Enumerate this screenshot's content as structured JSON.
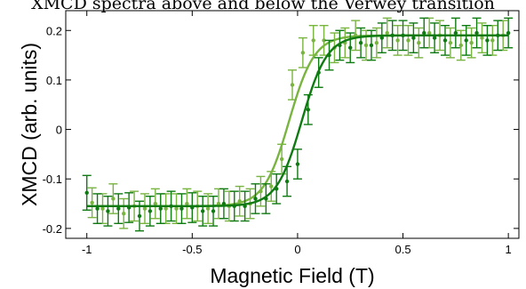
{
  "caption": "XMCD spectra above and below the Verwey transition",
  "chart_data": {
    "type": "scatter",
    "title": "",
    "xlabel": "Magnetic Field (T)",
    "ylabel": "XMCD (arb. units)",
    "xlim": [
      -1.1,
      1.05
    ],
    "ylim": [
      -0.22,
      0.24
    ],
    "xticks": [
      -1,
      -0.5,
      0,
      0.5,
      1
    ],
    "xtick_labels": [
      "-1",
      "-0.5",
      "0",
      "0.5",
      "1"
    ],
    "yticks": [
      -0.2,
      -0.1,
      0,
      0.1,
      0.2
    ],
    "ytick_labels": [
      "-0.2",
      "-0.1",
      "0",
      "0.1",
      "0.2"
    ],
    "grid": false,
    "legend": "none",
    "series": [
      {
        "color": "#0f7a12",
        "fit": {
          "low": -0.155,
          "high": 0.19,
          "center": 0.02,
          "width": 0.06
        },
        "points": [
          {
            "x": -1.0,
            "y": -0.128,
            "err": 0.035
          },
          {
            "x": -0.95,
            "y": -0.16,
            "err": 0.03
          },
          {
            "x": -0.9,
            "y": -0.165,
            "err": 0.03
          },
          {
            "x": -0.85,
            "y": -0.16,
            "err": 0.03
          },
          {
            "x": -0.8,
            "y": -0.158,
            "err": 0.03
          },
          {
            "x": -0.75,
            "y": -0.175,
            "err": 0.03
          },
          {
            "x": -0.7,
            "y": -0.165,
            "err": 0.03
          },
          {
            "x": -0.65,
            "y": -0.16,
            "err": 0.03
          },
          {
            "x": -0.6,
            "y": -0.155,
            "err": 0.03
          },
          {
            "x": -0.55,
            "y": -0.16,
            "err": 0.03
          },
          {
            "x": -0.5,
            "y": -0.158,
            "err": 0.03
          },
          {
            "x": -0.45,
            "y": -0.165,
            "err": 0.03
          },
          {
            "x": -0.4,
            "y": -0.165,
            "err": 0.03
          },
          {
            "x": -0.35,
            "y": -0.15,
            "err": 0.03
          },
          {
            "x": -0.3,
            "y": -0.155,
            "err": 0.03
          },
          {
            "x": -0.25,
            "y": -0.155,
            "err": 0.03
          },
          {
            "x": -0.2,
            "y": -0.14,
            "err": 0.03
          },
          {
            "x": -0.15,
            "y": -0.14,
            "err": 0.03
          },
          {
            "x": -0.1,
            "y": -0.12,
            "err": 0.03
          },
          {
            "x": -0.05,
            "y": -0.105,
            "err": 0.03
          },
          {
            "x": 0.0,
            "y": -0.07,
            "err": 0.03
          },
          {
            "x": 0.05,
            "y": 0.04,
            "err": 0.03
          },
          {
            "x": 0.1,
            "y": 0.115,
            "err": 0.03
          },
          {
            "x": 0.15,
            "y": 0.15,
            "err": 0.03
          },
          {
            "x": 0.2,
            "y": 0.17,
            "err": 0.03
          },
          {
            "x": 0.25,
            "y": 0.165,
            "err": 0.03
          },
          {
            "x": 0.3,
            "y": 0.175,
            "err": 0.03
          },
          {
            "x": 0.35,
            "y": 0.17,
            "err": 0.03
          },
          {
            "x": 0.4,
            "y": 0.185,
            "err": 0.03
          },
          {
            "x": 0.45,
            "y": 0.19,
            "err": 0.03
          },
          {
            "x": 0.5,
            "y": 0.19,
            "err": 0.03
          },
          {
            "x": 0.55,
            "y": 0.185,
            "err": 0.03
          },
          {
            "x": 0.6,
            "y": 0.195,
            "err": 0.03
          },
          {
            "x": 0.65,
            "y": 0.185,
            "err": 0.03
          },
          {
            "x": 0.7,
            "y": 0.18,
            "err": 0.03
          },
          {
            "x": 0.75,
            "y": 0.195,
            "err": 0.03
          },
          {
            "x": 0.8,
            "y": 0.18,
            "err": 0.03
          },
          {
            "x": 0.85,
            "y": 0.195,
            "err": 0.03
          },
          {
            "x": 0.9,
            "y": 0.18,
            "err": 0.03
          },
          {
            "x": 0.95,
            "y": 0.19,
            "err": 0.03
          },
          {
            "x": 1.0,
            "y": 0.195,
            "err": 0.03
          }
        ]
      },
      {
        "color": "#79b440",
        "fit": {
          "low": -0.155,
          "high": 0.19,
          "center": -0.04,
          "width": 0.06
        },
        "points": [
          {
            "x": -0.975,
            "y": -0.148,
            "err": 0.03
          },
          {
            "x": -0.925,
            "y": -0.16,
            "err": 0.03
          },
          {
            "x": -0.875,
            "y": -0.14,
            "err": 0.03
          },
          {
            "x": -0.825,
            "y": -0.17,
            "err": 0.03
          },
          {
            "x": -0.775,
            "y": -0.155,
            "err": 0.03
          },
          {
            "x": -0.725,
            "y": -0.16,
            "err": 0.03
          },
          {
            "x": -0.675,
            "y": -0.15,
            "err": 0.03
          },
          {
            "x": -0.625,
            "y": -0.16,
            "err": 0.03
          },
          {
            "x": -0.575,
            "y": -0.16,
            "err": 0.03
          },
          {
            "x": -0.525,
            "y": -0.15,
            "err": 0.03
          },
          {
            "x": -0.475,
            "y": -0.155,
            "err": 0.03
          },
          {
            "x": -0.425,
            "y": -0.16,
            "err": 0.03
          },
          {
            "x": -0.375,
            "y": -0.15,
            "err": 0.03
          },
          {
            "x": -0.325,
            "y": -0.155,
            "err": 0.03
          },
          {
            "x": -0.275,
            "y": -0.145,
            "err": 0.03
          },
          {
            "x": -0.225,
            "y": -0.15,
            "err": 0.03
          },
          {
            "x": -0.175,
            "y": -0.125,
            "err": 0.03
          },
          {
            "x": -0.125,
            "y": -0.115,
            "err": 0.03
          },
          {
            "x": -0.075,
            "y": -0.06,
            "err": 0.03
          },
          {
            "x": -0.025,
            "y": 0.09,
            "err": 0.03
          },
          {
            "x": 0.025,
            "y": 0.155,
            "err": 0.03
          },
          {
            "x": 0.075,
            "y": 0.18,
            "err": 0.03
          },
          {
            "x": 0.125,
            "y": 0.18,
            "err": 0.03
          },
          {
            "x": 0.175,
            "y": 0.165,
            "err": 0.03
          },
          {
            "x": 0.225,
            "y": 0.175,
            "err": 0.03
          },
          {
            "x": 0.275,
            "y": 0.19,
            "err": 0.03
          },
          {
            "x": 0.325,
            "y": 0.17,
            "err": 0.03
          },
          {
            "x": 0.375,
            "y": 0.175,
            "err": 0.03
          },
          {
            "x": 0.425,
            "y": 0.195,
            "err": 0.03
          },
          {
            "x": 0.475,
            "y": 0.18,
            "err": 0.03
          },
          {
            "x": 0.525,
            "y": 0.18,
            "err": 0.03
          },
          {
            "x": 0.575,
            "y": 0.175,
            "err": 0.03
          },
          {
            "x": 0.625,
            "y": 0.195,
            "err": 0.03
          },
          {
            "x": 0.675,
            "y": 0.19,
            "err": 0.03
          },
          {
            "x": 0.725,
            "y": 0.175,
            "err": 0.03
          },
          {
            "x": 0.775,
            "y": 0.17,
            "err": 0.03
          },
          {
            "x": 0.825,
            "y": 0.175,
            "err": 0.03
          },
          {
            "x": 0.875,
            "y": 0.185,
            "err": 0.03
          },
          {
            "x": 0.925,
            "y": 0.18,
            "err": 0.03
          },
          {
            "x": 0.975,
            "y": 0.19,
            "err": 0.03
          }
        ]
      }
    ]
  }
}
